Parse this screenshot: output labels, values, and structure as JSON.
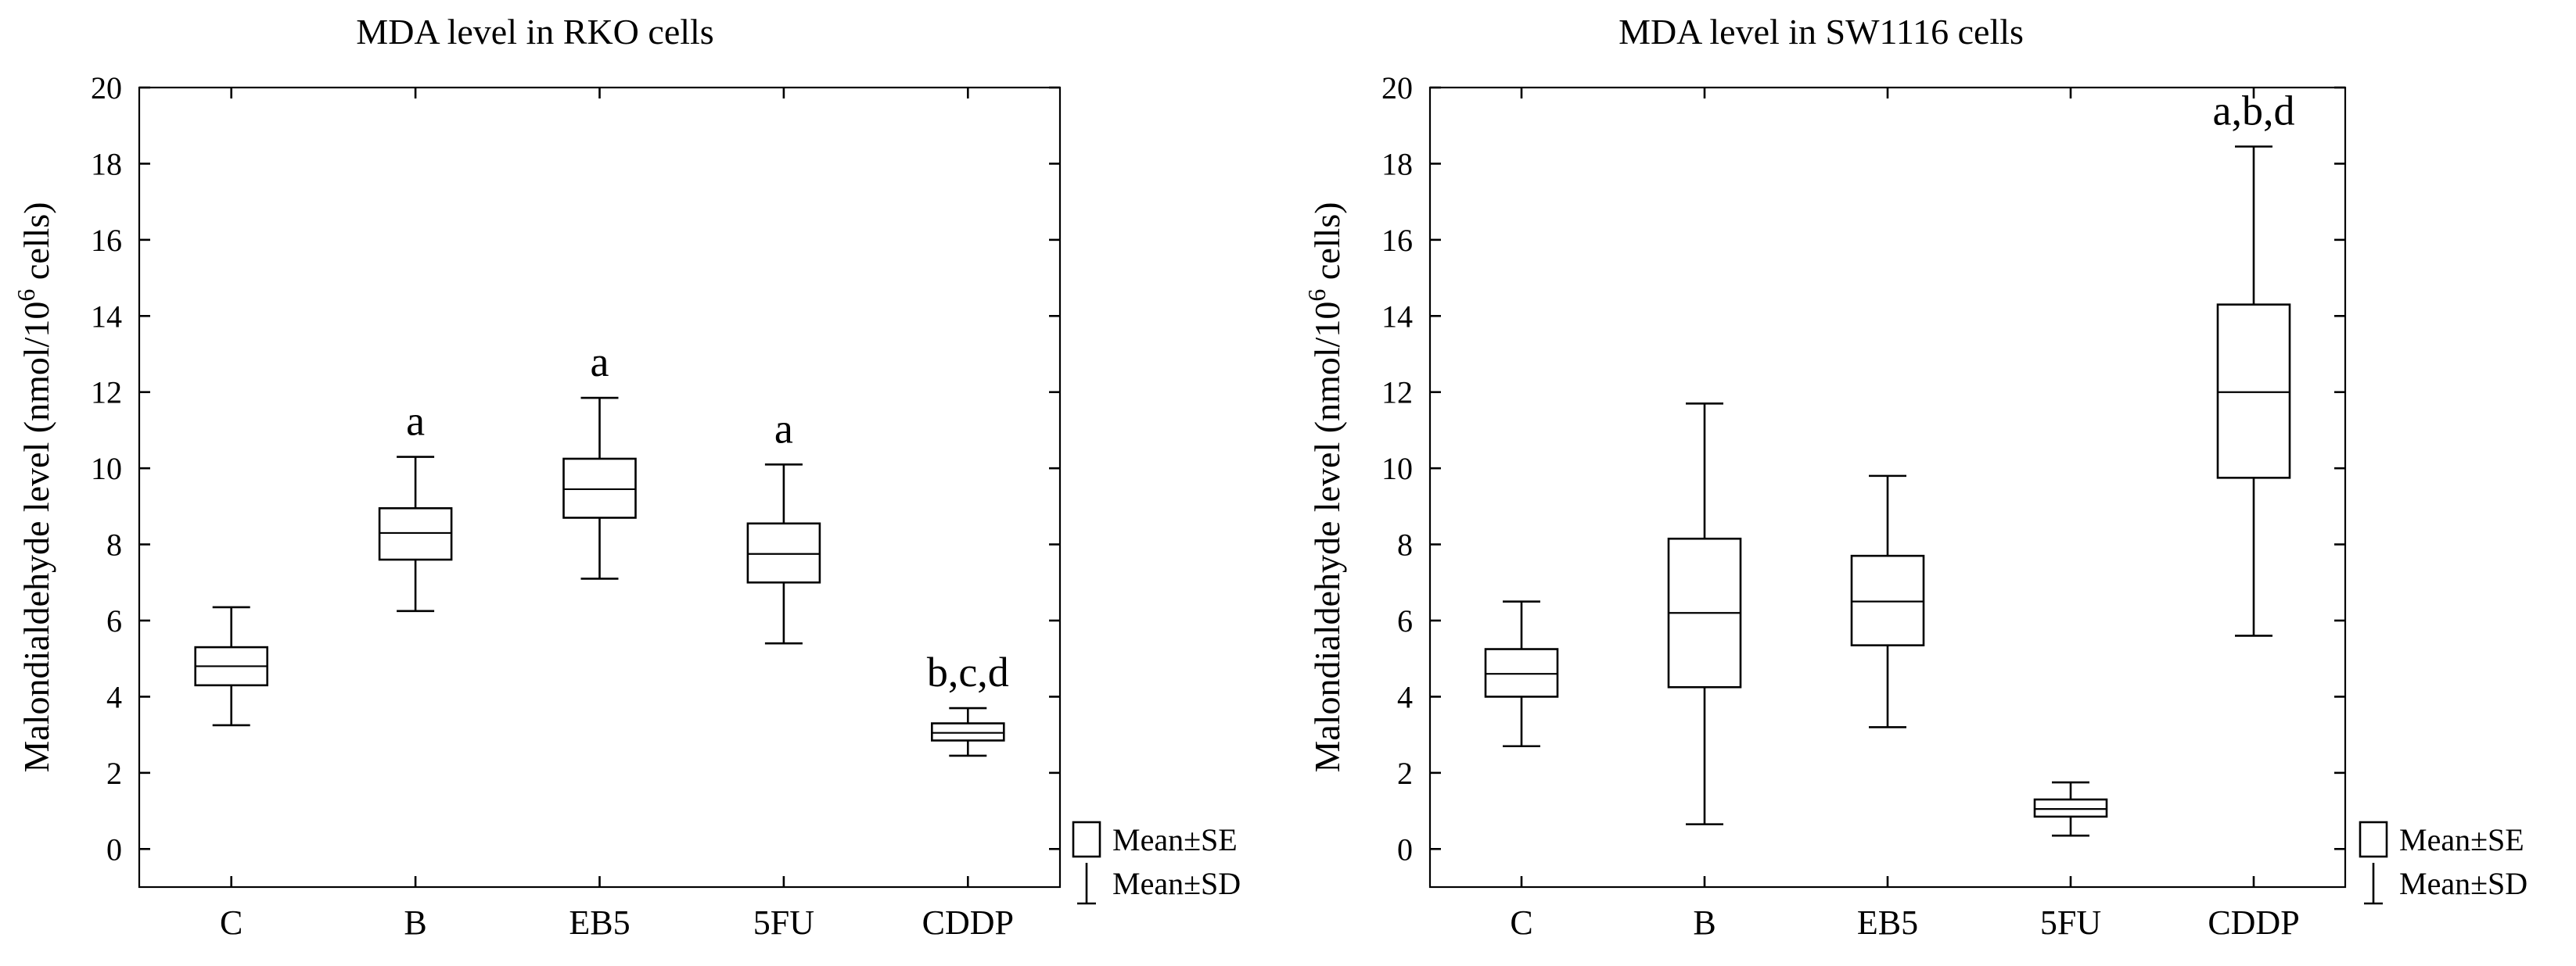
{
  "chart_data": [
    {
      "type": "box",
      "title": "MDA level in RKO cells",
      "ylabel": "Malondialdehyde level (nmol/10",
      "ylabel_sup": "6",
      "ylabel_end": " cells)",
      "ylim": [
        -1,
        20
      ],
      "yticks": [
        "0",
        "2",
        "4",
        "6",
        "8",
        "10",
        "12",
        "14",
        "16",
        "18",
        "20"
      ],
      "categories": [
        "C",
        "B",
        "EB5",
        "5FU",
        "CDDP"
      ],
      "boxes": [
        {
          "category": "C",
          "mean": 4.8,
          "se_low": 4.3,
          "se_high": 5.3,
          "sd_low": 3.25,
          "sd_high": 6.35,
          "annotation": ""
        },
        {
          "category": "B",
          "mean": 8.3,
          "se_low": 7.6,
          "se_high": 8.95,
          "sd_low": 6.25,
          "sd_high": 10.3,
          "annotation": "a"
        },
        {
          "category": "EB5",
          "mean": 9.45,
          "se_low": 8.7,
          "se_high": 10.25,
          "sd_low": 7.1,
          "sd_high": 11.85,
          "annotation": "a"
        },
        {
          "category": "5FU",
          "mean": 7.75,
          "se_low": 7.0,
          "se_high": 8.55,
          "sd_low": 5.4,
          "sd_high": 10.1,
          "annotation": "a"
        },
        {
          "category": "CDDP",
          "mean": 3.05,
          "se_low": 2.85,
          "se_high": 3.3,
          "sd_low": 2.45,
          "sd_high": 3.7,
          "annotation": "b,c,d"
        }
      ],
      "legend": [
        "Mean±SE",
        "Mean±SD"
      ],
      "legend_position": "bottom-right, outside"
    },
    {
      "type": "box",
      "title": "MDA level in SW1116 cells",
      "ylabel": "Malondialdehyde level (nmol/10",
      "ylabel_sup": "6",
      "ylabel_end": " cells)",
      "ylim": [
        -1,
        20
      ],
      "yticks": [
        "0",
        "2",
        "4",
        "6",
        "8",
        "10",
        "12",
        "14",
        "16",
        "18",
        "20"
      ],
      "categories": [
        "C",
        "B",
        "EB5",
        "5FU",
        "CDDP"
      ],
      "boxes": [
        {
          "category": "C",
          "mean": 4.6,
          "se_low": 4.0,
          "se_high": 5.25,
          "sd_low": 2.7,
          "sd_high": 6.5,
          "annotation": ""
        },
        {
          "category": "B",
          "mean": 6.2,
          "se_low": 4.25,
          "se_high": 8.15,
          "sd_low": 0.65,
          "sd_high": 11.7,
          "annotation": ""
        },
        {
          "category": "EB5",
          "mean": 6.5,
          "se_low": 5.35,
          "se_high": 7.7,
          "sd_low": 3.2,
          "sd_high": 9.8,
          "annotation": ""
        },
        {
          "category": "5FU",
          "mean": 1.05,
          "se_low": 0.85,
          "se_high": 1.3,
          "sd_low": 0.35,
          "sd_high": 1.75,
          "annotation": ""
        },
        {
          "category": "CDDP",
          "mean": 12.0,
          "se_low": 9.75,
          "se_high": 14.3,
          "sd_low": 5.6,
          "sd_high": 18.45,
          "annotation": "a,b,d"
        }
      ],
      "legend": [
        "Mean±SE",
        "Mean±SD"
      ],
      "legend_position": "bottom-right, outside"
    }
  ]
}
